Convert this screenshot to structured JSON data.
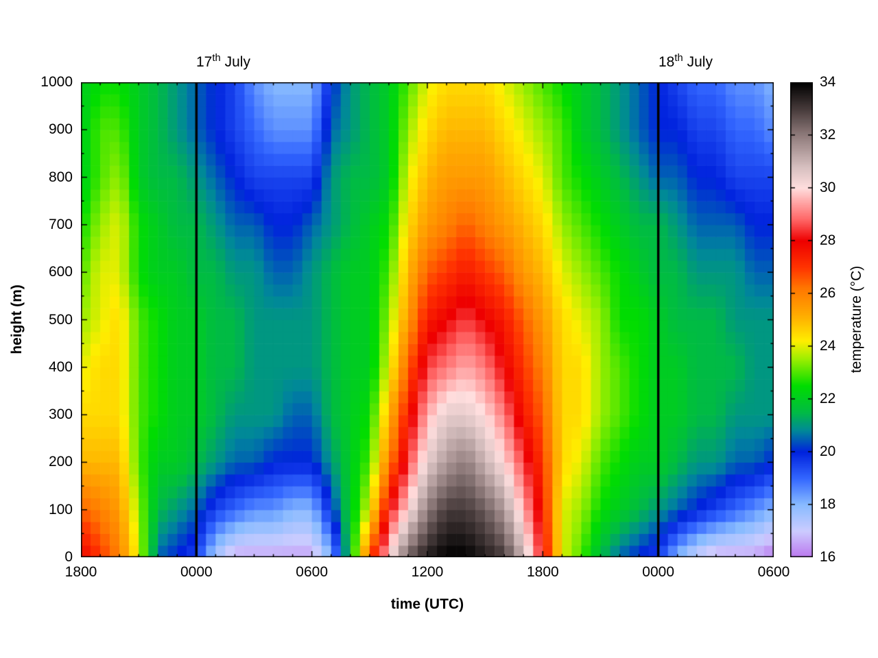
{
  "figure": {
    "background": "#ffffff"
  },
  "chart_data": {
    "type": "heatmap",
    "title": "",
    "xlabel": "time (UTC)",
    "ylabel": "height (m)",
    "colorbar_label": "temperature (°C)",
    "annotations": {
      "day1": {
        "number": "17",
        "suffix": "th",
        "rest": "July"
      },
      "day2": {
        "number": "18",
        "suffix": "th",
        "rest": "July"
      }
    },
    "x_hours_range": [
      0,
      36
    ],
    "x_tick_hours": [
      0,
      6,
      12,
      18,
      24,
      30,
      36
    ],
    "x_tick_labels": [
      "1800",
      "0000",
      "0600",
      "1200",
      "1800",
      "0000",
      "0600"
    ],
    "x_minor_step_hours": 1,
    "y_range": [
      0,
      1000
    ],
    "y_tick_values": [
      0,
      100,
      200,
      300,
      400,
      500,
      600,
      700,
      800,
      900,
      1000
    ],
    "y_tick_labels": [
      "0",
      "100",
      "200",
      "300",
      "400",
      "500",
      "600",
      "700",
      "800",
      "900",
      "1000"
    ],
    "y_minor_step": 50,
    "colorbar_range": [
      16,
      34
    ],
    "colorbar_tick_values": [
      16,
      18,
      20,
      22,
      24,
      26,
      28,
      30,
      32,
      34
    ],
    "day_line_hours": [
      6,
      30
    ],
    "line_color": "#000000",
    "palette_stops": [
      [
        16,
        "#bb77ee"
      ],
      [
        17,
        "#ccccff"
      ],
      [
        18,
        "#88bbff"
      ],
      [
        19,
        "#3366ff"
      ],
      [
        20,
        "#0022dd"
      ],
      [
        20.8,
        "#008899"
      ],
      [
        21.5,
        "#00bb44"
      ],
      [
        22.5,
        "#00dd00"
      ],
      [
        23.5,
        "#99ee00"
      ],
      [
        24.2,
        "#ffee00"
      ],
      [
        25.2,
        "#ffaa00"
      ],
      [
        26.2,
        "#ff7700"
      ],
      [
        27,
        "#ff3300"
      ],
      [
        28,
        "#ee0000"
      ],
      [
        28.8,
        "#ff6666"
      ],
      [
        29.5,
        "#ffaaaa"
      ],
      [
        30,
        "#ffdede"
      ],
      [
        30.8,
        "#d6bfbf"
      ],
      [
        32,
        "#8f7b7b"
      ],
      [
        33,
        "#463a3a"
      ],
      [
        34,
        "#000000"
      ]
    ],
    "grid": {
      "time_hours_start": 0,
      "time_hours_end": 36,
      "heights_m": [
        0,
        100,
        200,
        300,
        400,
        500,
        600,
        700,
        800,
        900,
        1000
      ],
      "temperatures_by_height": [
        [
          28,
          27,
          26,
          24,
          20.5,
          20,
          19.5,
          17.5,
          16.5,
          16.5,
          16.5,
          16.5,
          16.5,
          18,
          22,
          26.5,
          30,
          32.5,
          33.5,
          34,
          34,
          33.5,
          33,
          31,
          28,
          24,
          23,
          21.5,
          20.5,
          20,
          19.5,
          18,
          17,
          16.5,
          16.5,
          16.5,
          16
        ],
        [
          26.5,
          26,
          25.5,
          23.5,
          21.5,
          21,
          20.5,
          19.5,
          19,
          18.5,
          18.5,
          18,
          18,
          20,
          22,
          24,
          28,
          30,
          32,
          33,
          33,
          32.5,
          31.5,
          29.5,
          27.5,
          24,
          23.5,
          22.5,
          22,
          21.5,
          21,
          20.5,
          20,
          19.5,
          19,
          18.5,
          18
        ],
        [
          25,
          25,
          25,
          23,
          22,
          22,
          21.5,
          21,
          20.5,
          20.5,
          20,
          20,
          20,
          21,
          22,
          23,
          26,
          28.5,
          30.5,
          31.5,
          32,
          31,
          30,
          28.5,
          27,
          24.5,
          24,
          23,
          22.5,
          22,
          22,
          21.5,
          21,
          21,
          20.5,
          20.5,
          20
        ],
        [
          24.5,
          24.5,
          24.5,
          23,
          22.5,
          22,
          22,
          21.5,
          21,
          21,
          21,
          20.5,
          20.5,
          21.5,
          22,
          22.5,
          25,
          27.5,
          29.5,
          30.5,
          30.5,
          30,
          29,
          27.5,
          26.5,
          24.5,
          24.5,
          23.5,
          23,
          22.5,
          22,
          22,
          21.5,
          21.5,
          21,
          21,
          21
        ],
        [
          24,
          24.5,
          24.5,
          23,
          22.5,
          22,
          22,
          21.5,
          21.5,
          21,
          21,
          21,
          21,
          21.5,
          22,
          22,
          24,
          26.5,
          28.5,
          29,
          29.5,
          29,
          28,
          27,
          26,
          24.5,
          24.5,
          23.5,
          23,
          22.5,
          22,
          22,
          21.5,
          21.5,
          21.5,
          21,
          21
        ],
        [
          23.5,
          24,
          24.5,
          23,
          22.5,
          22,
          22,
          21.5,
          21.5,
          21,
          21,
          21,
          21,
          21.5,
          22,
          22,
          23.5,
          25.5,
          27.5,
          28,
          28.5,
          28,
          27.5,
          26.5,
          25.5,
          24.5,
          24,
          23.5,
          22.5,
          22.5,
          22,
          21.5,
          21.5,
          21.5,
          21,
          21,
          21
        ],
        [
          23,
          24,
          24,
          22.5,
          22,
          22,
          21.5,
          21.5,
          21,
          21,
          20.5,
          20.5,
          21,
          21.5,
          22,
          22,
          23,
          25,
          26.5,
          27,
          27.5,
          27,
          26.5,
          25.5,
          25,
          24,
          23.5,
          23,
          22.5,
          22,
          21.5,
          21.5,
          21,
          21,
          21,
          20.5,
          20.5
        ],
        [
          22.5,
          23.5,
          24,
          22.5,
          22,
          21.5,
          21.5,
          21,
          20.5,
          20.5,
          20,
          20,
          20.5,
          21,
          21.5,
          22,
          22.5,
          24.5,
          25.5,
          26,
          26.5,
          26,
          25.5,
          25,
          24.5,
          23.5,
          23,
          22.5,
          22,
          21.5,
          21.5,
          21,
          20.5,
          20.5,
          20.5,
          20,
          20
        ],
        [
          22,
          23,
          23.5,
          22,
          21.5,
          21.5,
          21,
          20.5,
          20,
          19.5,
          19.5,
          19.5,
          19.5,
          21,
          21.5,
          21.5,
          22,
          24,
          25,
          25.5,
          25.5,
          25.5,
          25,
          24.5,
          24,
          23,
          22.5,
          22,
          21.5,
          21,
          20.5,
          20.5,
          20,
          20,
          19.5,
          19.5,
          19.5
        ],
        [
          22,
          23,
          23,
          22,
          21.5,
          21,
          20.5,
          20,
          19.5,
          19,
          18.5,
          18.5,
          18.5,
          20.5,
          21,
          21.5,
          22,
          23.5,
          24.5,
          25,
          25,
          25,
          24.5,
          24,
          23.5,
          23,
          22,
          21.5,
          21,
          20.5,
          20,
          20,
          19.5,
          19.5,
          19,
          19,
          18.5
        ],
        [
          22,
          22.5,
          22.5,
          22,
          21.5,
          21,
          20.5,
          20,
          19.5,
          18.5,
          18,
          18,
          18,
          20,
          21,
          21.5,
          22,
          23,
          24,
          24.5,
          24.5,
          24.5,
          24,
          23.5,
          23,
          22.5,
          22,
          21.5,
          21,
          20.5,
          20,
          19.5,
          19,
          19,
          18.5,
          18.5,
          18
        ]
      ]
    }
  }
}
